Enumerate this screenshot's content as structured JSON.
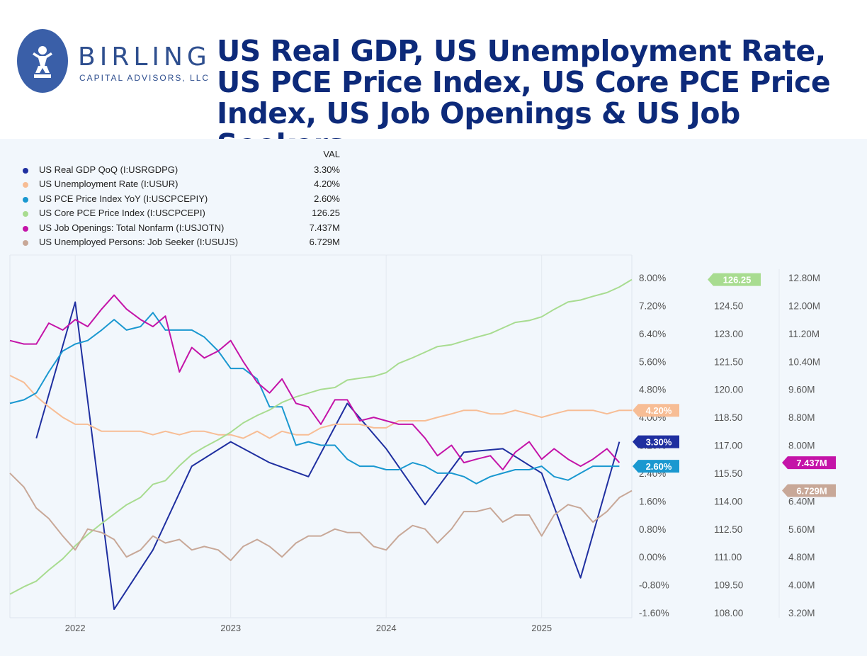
{
  "header": {
    "brand_name": "BIRLING",
    "brand_sub": "CAPITAL ADVISORS, LLC",
    "title": "US Real GDP, US Unemployment Rate, US PCE Price Index, US Core PCE Price Index, US Job Openings & US Job Seekers"
  },
  "legend": {
    "value_header": "VAL",
    "items": [
      {
        "name": "US Real GDP QoQ (I:USRGDPG)",
        "value": "3.30%",
        "color": "#1f2fa0"
      },
      {
        "name": "US Unemployment Rate (I:USUR)",
        "value": "4.20%",
        "color": "#f7bd95"
      },
      {
        "name": "US PCE Price Index YoY (I:USCPCEPIY)",
        "value": "2.60%",
        "color": "#1a98d0"
      },
      {
        "name": "US Core PCE Price Index (I:USCPCEPI)",
        "value": "126.25",
        "color": "#a8dc90"
      },
      {
        "name": "US Job Openings: Total Nonfarm (I:USJOTN)",
        "value": "7.437M",
        "color": "#c414a8"
      },
      {
        "name": "US Unemployed Persons: Job Seeker (I:USUJS)",
        "value": "6.729M",
        "color": "#c8a898"
      }
    ]
  },
  "chart_data": {
    "type": "line",
    "x_ticks": [
      "2022",
      "2023",
      "2024",
      "2025"
    ],
    "x_tick_t": [
      2022.0,
      2023.0,
      2024.0,
      2025.0
    ],
    "x_range": [
      2021.58,
      2025.58
    ],
    "axes": {
      "pct": {
        "range": [
          -1.6,
          8.0
        ],
        "ticks": [
          "8.00%",
          "7.20%",
          "6.40%",
          "5.60%",
          "4.80%",
          "4.00%",
          "3.20%",
          "2.40%",
          "1.60%",
          "0.80%",
          "0.00%",
          "-0.80%",
          "-1.60%"
        ],
        "tick_values": [
          8.0,
          7.2,
          6.4,
          5.6,
          4.8,
          4.0,
          3.2,
          2.4,
          1.6,
          0.8,
          0.0,
          -0.8,
          -1.6
        ]
      },
      "index": {
        "range": [
          108.0,
          126.0
        ],
        "ticks": [
          "124.50",
          "123.00",
          "121.50",
          "120.00",
          "118.50",
          "117.00",
          "115.50",
          "114.00",
          "112.50",
          "111.00",
          "109.50",
          "108.00"
        ],
        "tick_values": [
          124.5,
          123.0,
          121.5,
          120.0,
          118.5,
          117.0,
          115.5,
          114.0,
          112.5,
          111.0,
          109.5,
          108.0
        ]
      },
      "millions": {
        "range": [
          3.2,
          12.8
        ],
        "ticks": [
          "12.80M",
          "12.00M",
          "11.20M",
          "10.40M",
          "9.60M",
          "8.80M",
          "8.00M",
          "6.40M",
          "5.60M",
          "4.80M",
          "4.00M",
          "3.20M"
        ],
        "tick_values": [
          12.8,
          12.0,
          11.2,
          10.4,
          9.6,
          8.8,
          8.0,
          6.4,
          5.6,
          4.8,
          4.0,
          3.2
        ]
      }
    },
    "series": [
      {
        "name": "US Real GDP QoQ",
        "axis": "pct",
        "color": "#1f2fa0",
        "label": "3.30%",
        "x": [
          2021.75,
          2022.0,
          2022.25,
          2022.5,
          2022.75,
          2023.0,
          2023.25,
          2023.5,
          2023.75,
          2024.0,
          2024.25,
          2024.5,
          2024.75,
          2025.0,
          2025.25,
          2025.5
        ],
        "y": [
          3.4,
          7.3,
          -1.5,
          0.2,
          2.6,
          3.3,
          2.7,
          2.3,
          4.4,
          3.1,
          1.5,
          3.0,
          3.1,
          2.4,
          -0.6,
          3.3
        ]
      },
      {
        "name": "US Unemployment Rate",
        "axis": "pct",
        "color": "#f7bd95",
        "label": "4.20%",
        "x": [
          2021.58,
          2021.67,
          2021.75,
          2021.83,
          2021.92,
          2022.0,
          2022.08,
          2022.17,
          2022.25,
          2022.33,
          2022.42,
          2022.5,
          2022.58,
          2022.67,
          2022.75,
          2022.83,
          2022.92,
          2023.0,
          2023.08,
          2023.17,
          2023.25,
          2023.33,
          2023.42,
          2023.5,
          2023.58,
          2023.67,
          2023.75,
          2023.83,
          2023.92,
          2024.0,
          2024.08,
          2024.17,
          2024.25,
          2024.33,
          2024.42,
          2024.5,
          2024.58,
          2024.67,
          2024.75,
          2024.83,
          2024.92,
          2025.0,
          2025.08,
          2025.17,
          2025.25,
          2025.33,
          2025.42,
          2025.5,
          2025.58
        ],
        "y": [
          5.2,
          5.0,
          4.6,
          4.3,
          4.0,
          3.8,
          3.8,
          3.6,
          3.6,
          3.6,
          3.6,
          3.5,
          3.6,
          3.5,
          3.6,
          3.6,
          3.5,
          3.5,
          3.4,
          3.6,
          3.4,
          3.6,
          3.5,
          3.5,
          3.7,
          3.8,
          3.8,
          3.8,
          3.7,
          3.7,
          3.9,
          3.9,
          3.9,
          4.0,
          4.1,
          4.2,
          4.2,
          4.1,
          4.1,
          4.2,
          4.1,
          4.0,
          4.1,
          4.2,
          4.2,
          4.2,
          4.1,
          4.2,
          4.2
        ]
      },
      {
        "name": "US PCE Price Index YoY",
        "axis": "pct",
        "color": "#1a98d0",
        "label": "2.60%",
        "x": [
          2021.58,
          2021.67,
          2021.75,
          2021.83,
          2021.92,
          2022.0,
          2022.08,
          2022.17,
          2022.25,
          2022.33,
          2022.42,
          2022.5,
          2022.58,
          2022.67,
          2022.75,
          2022.83,
          2022.92,
          2023.0,
          2023.08,
          2023.17,
          2023.25,
          2023.33,
          2023.42,
          2023.5,
          2023.58,
          2023.67,
          2023.75,
          2023.83,
          2023.92,
          2024.0,
          2024.08,
          2024.17,
          2024.25,
          2024.33,
          2024.42,
          2024.5,
          2024.58,
          2024.67,
          2024.75,
          2024.83,
          2024.92,
          2025.0,
          2025.08,
          2025.17,
          2025.25,
          2025.33,
          2025.42,
          2025.5
        ],
        "y": [
          4.4,
          4.5,
          4.7,
          5.3,
          5.9,
          6.1,
          6.2,
          6.5,
          6.8,
          6.5,
          6.6,
          7.0,
          6.5,
          6.5,
          6.5,
          6.3,
          5.9,
          5.4,
          5.4,
          5.1,
          4.3,
          4.3,
          3.2,
          3.3,
          3.2,
          3.2,
          2.8,
          2.6,
          2.6,
          2.5,
          2.5,
          2.7,
          2.6,
          2.4,
          2.4,
          2.3,
          2.1,
          2.3,
          2.4,
          2.5,
          2.5,
          2.6,
          2.3,
          2.2,
          2.4,
          2.6,
          2.6,
          2.6
        ]
      },
      {
        "name": "US Core PCE Price Index",
        "axis": "index",
        "color": "#a8dc90",
        "label": "126.25",
        "x": [
          2021.58,
          2021.67,
          2021.75,
          2021.83,
          2021.92,
          2022.0,
          2022.08,
          2022.17,
          2022.25,
          2022.33,
          2022.42,
          2022.5,
          2022.58,
          2022.67,
          2022.75,
          2022.83,
          2022.92,
          2023.0,
          2023.08,
          2023.17,
          2023.25,
          2023.33,
          2023.42,
          2023.5,
          2023.58,
          2023.67,
          2023.75,
          2023.83,
          2023.92,
          2024.0,
          2024.08,
          2024.17,
          2024.25,
          2024.33,
          2024.42,
          2024.5,
          2024.58,
          2024.67,
          2024.75,
          2024.83,
          2024.92,
          2025.0,
          2025.08,
          2025.17,
          2025.25,
          2025.33,
          2025.42,
          2025.5,
          2025.58
        ],
        "y": [
          109.0,
          109.4,
          109.7,
          110.3,
          110.9,
          111.6,
          112.2,
          112.8,
          113.3,
          113.8,
          114.2,
          114.9,
          115.1,
          115.9,
          116.5,
          116.9,
          117.3,
          117.7,
          118.2,
          118.6,
          118.9,
          119.3,
          119.6,
          119.8,
          120.0,
          120.1,
          120.5,
          120.6,
          120.7,
          120.9,
          121.4,
          121.7,
          122.0,
          122.3,
          122.4,
          122.6,
          122.8,
          123.0,
          123.3,
          123.6,
          123.7,
          123.9,
          124.3,
          124.7,
          124.8,
          125.0,
          125.2,
          125.5,
          125.9
        ]
      },
      {
        "name": "US Job Openings: Total Nonfarm",
        "axis": "millions",
        "color": "#c414a8",
        "label": "7.437M",
        "x": [
          2021.58,
          2021.67,
          2021.75,
          2021.83,
          2021.92,
          2022.0,
          2022.08,
          2022.17,
          2022.25,
          2022.33,
          2022.42,
          2022.5,
          2022.58,
          2022.67,
          2022.75,
          2022.83,
          2022.92,
          2023.0,
          2023.08,
          2023.17,
          2023.25,
          2023.33,
          2023.42,
          2023.5,
          2023.58,
          2023.67,
          2023.75,
          2023.83,
          2023.92,
          2024.0,
          2024.08,
          2024.17,
          2024.25,
          2024.33,
          2024.42,
          2024.5,
          2024.58,
          2024.67,
          2024.75,
          2024.83,
          2024.92,
          2025.0,
          2025.08,
          2025.17,
          2025.25,
          2025.33,
          2025.42,
          2025.5
        ],
        "y": [
          11.0,
          10.9,
          10.9,
          11.5,
          11.3,
          11.6,
          11.4,
          11.9,
          12.3,
          11.9,
          11.6,
          11.4,
          11.7,
          10.1,
          10.8,
          10.5,
          10.7,
          11.0,
          10.4,
          9.8,
          9.5,
          9.9,
          9.2,
          9.1,
          8.6,
          9.3,
          9.3,
          8.7,
          8.8,
          8.7,
          8.6,
          8.6,
          8.2,
          7.7,
          8.0,
          7.5,
          7.6,
          7.7,
          7.3,
          7.8,
          8.1,
          7.6,
          7.9,
          7.6,
          7.4,
          7.6,
          7.9,
          7.5
        ]
      },
      {
        "name": "US Unemployed Persons: Job Seeker",
        "axis": "millions",
        "color": "#c8a898",
        "label": "6.729M",
        "x": [
          2021.58,
          2021.67,
          2021.75,
          2021.83,
          2021.92,
          2022.0,
          2022.08,
          2022.17,
          2022.25,
          2022.33,
          2022.42,
          2022.5,
          2022.58,
          2022.67,
          2022.75,
          2022.83,
          2022.92,
          2023.0,
          2023.08,
          2023.17,
          2023.25,
          2023.33,
          2023.42,
          2023.5,
          2023.58,
          2023.67,
          2023.75,
          2023.83,
          2023.92,
          2024.0,
          2024.08,
          2024.17,
          2024.25,
          2024.33,
          2024.42,
          2024.5,
          2024.58,
          2024.67,
          2024.75,
          2024.83,
          2024.92,
          2025.0,
          2025.08,
          2025.17,
          2025.25,
          2025.33,
          2025.42,
          2025.5,
          2025.58
        ],
        "y": [
          7.2,
          6.8,
          6.2,
          5.9,
          5.4,
          5.0,
          5.6,
          5.5,
          5.3,
          4.8,
          5.0,
          5.4,
          5.2,
          5.3,
          5.0,
          5.1,
          5.0,
          4.7,
          5.1,
          5.3,
          5.1,
          4.8,
          5.2,
          5.4,
          5.4,
          5.6,
          5.5,
          5.5,
          5.1,
          5.0,
          5.4,
          5.7,
          5.6,
          5.2,
          5.6,
          6.1,
          6.1,
          6.2,
          5.8,
          6.0,
          6.0,
          5.4,
          6.0,
          6.3,
          6.2,
          5.8,
          6.1,
          6.5,
          6.7
        ]
      }
    ]
  }
}
